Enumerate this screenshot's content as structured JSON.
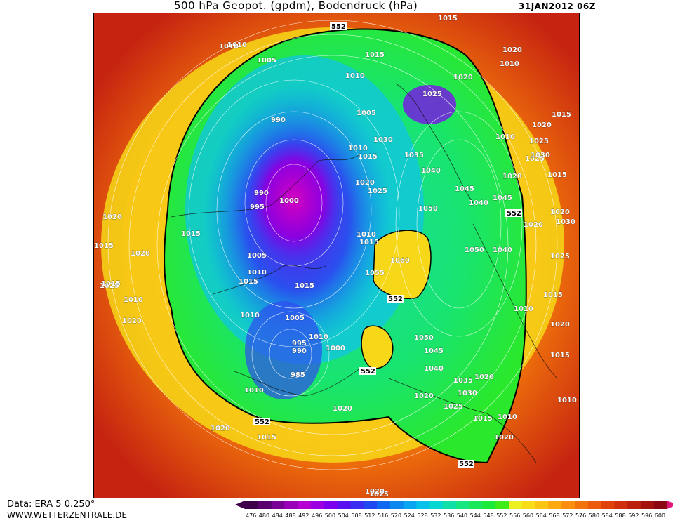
{
  "header": {
    "title": "500 hPa Geopot. (gpdm), Bodendruck (hPa)",
    "date": "31JAN2012 06Z"
  },
  "footer": {
    "data_source": "Data: ERA 5 0.250°",
    "website": "WWW.WETTERZENTRALE.DE"
  },
  "legend": {
    "values": [
      "476",
      "480",
      "484",
      "488",
      "492",
      "496",
      "500",
      "504",
      "508",
      "512",
      "516",
      "520",
      "524",
      "528",
      "532",
      "536",
      "540",
      "544",
      "548",
      "552",
      "556",
      "560",
      "564",
      "568",
      "572",
      "576",
      "580",
      "584",
      "588",
      "592",
      "596",
      "600"
    ],
    "colors": [
      "#3d0048",
      "#5a006e",
      "#7a0096",
      "#9a00b8",
      "#b400d2",
      "#9c00e0",
      "#7d00ec",
      "#5a10f0",
      "#3a2cf0",
      "#2048f0",
      "#1068f0",
      "#0a88f0",
      "#08a6f0",
      "#06c2ea",
      "#08d6d0",
      "#10e0a8",
      "#18e680",
      "#1ae85a",
      "#1aea38",
      "#40ec18",
      "#ecf020",
      "#f8dc18",
      "#fcc414",
      "#fcaa10",
      "#fa8e0e",
      "#f4740c",
      "#ec5c0c",
      "#e0440c",
      "#d0300c",
      "#bc200c",
      "#a4120e",
      "#8c0810"
    ],
    "low_arrow_color": "#3d0048",
    "high_arrow_color": "#e0167a"
  },
  "map": {
    "contour_label": "552",
    "pressure_labels": [
      {
        "text": "1015"
      },
      {
        "text": "1010"
      },
      {
        "text": "1005"
      },
      {
        "text": "1015"
      },
      {
        "text": "1010"
      },
      {
        "text": "1020"
      },
      {
        "text": "1020"
      },
      {
        "text": "1025"
      },
      {
        "text": "1005"
      },
      {
        "text": "990"
      },
      {
        "text": "1030"
      },
      {
        "text": "1010"
      },
      {
        "text": "1015"
      },
      {
        "text": "1035"
      },
      {
        "text": "1040"
      },
      {
        "text": "1020"
      },
      {
        "text": "1025"
      },
      {
        "text": "990"
      },
      {
        "text": "995"
      },
      {
        "text": "1000"
      },
      {
        "text": "1045"
      },
      {
        "text": "1040"
      },
      {
        "text": "1050"
      },
      {
        "text": "1020"
      },
      {
        "text": "1010"
      },
      {
        "text": "1015"
      },
      {
        "text": "1045"
      },
      {
        "text": "1010"
      },
      {
        "text": "1015"
      },
      {
        "text": "1050"
      },
      {
        "text": "1040"
      },
      {
        "text": "1005"
      },
      {
        "text": "1010"
      },
      {
        "text": "1015"
      },
      {
        "text": "1055"
      },
      {
        "text": "1060"
      },
      {
        "text": "1015"
      },
      {
        "text": "1010"
      },
      {
        "text": "1005"
      },
      {
        "text": "995"
      },
      {
        "text": "990"
      },
      {
        "text": "1010"
      },
      {
        "text": "1000"
      },
      {
        "text": "985"
      },
      {
        "text": "1050"
      },
      {
        "text": "1045"
      },
      {
        "text": "1040"
      },
      {
        "text": "1035"
      },
      {
        "text": "1020"
      },
      {
        "text": "1030"
      },
      {
        "text": "1025"
      },
      {
        "text": "1020"
      },
      {
        "text": "1015"
      },
      {
        "text": "1010"
      },
      {
        "text": "1010"
      },
      {
        "text": "1020"
      },
      {
        "text": "1020"
      },
      {
        "text": "1015"
      },
      {
        "text": "1020"
      },
      {
        "text": "1015"
      },
      {
        "text": "1015"
      },
      {
        "text": "1020"
      },
      {
        "text": "1010"
      },
      {
        "text": "1020"
      },
      {
        "text": "1025"
      },
      {
        "text": "1010"
      },
      {
        "text": "1015"
      },
      {
        "text": "1010"
      },
      {
        "text": "1020"
      },
      {
        "text": "1020"
      },
      {
        "text": "1015"
      },
      {
        "text": "1010"
      },
      {
        "text": "1020"
      },
      {
        "text": "1025"
      },
      {
        "text": "1015"
      },
      {
        "text": "1025"
      },
      {
        "text": "1020"
      },
      {
        "text": "1025"
      },
      {
        "text": "1030"
      },
      {
        "text": "1015"
      },
      {
        "text": "1020"
      },
      {
        "text": "1030"
      },
      {
        "text": "1025"
      },
      {
        "text": "1020"
      },
      {
        "text": "1010"
      }
    ]
  }
}
